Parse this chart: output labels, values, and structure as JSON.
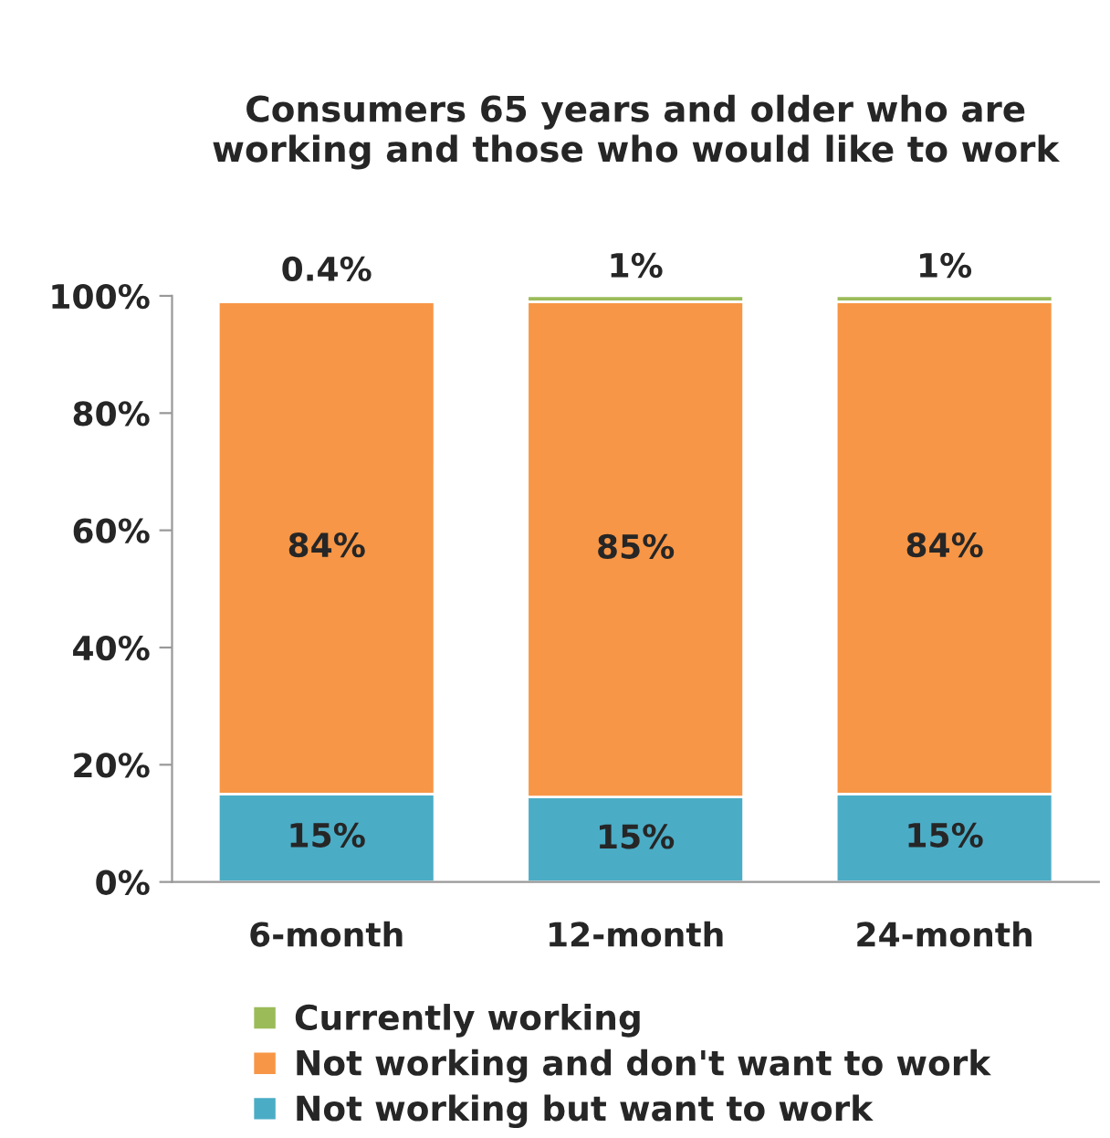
{
  "chart_data": {
    "type": "bar",
    "stacked": true,
    "title": "Consumers 65 years and older who are working and those who would like to work",
    "categories": [
      "6-month",
      "12-month",
      "24-month"
    ],
    "series": [
      {
        "name": "Not working but want to work",
        "color": "#4bacc6",
        "values": [
          15,
          14.5,
          15
        ],
        "value_labels": [
          "15%",
          "15%",
          "15%"
        ]
      },
      {
        "name": "Not working and don't want to work",
        "color": "#f79646",
        "values": [
          84,
          84.5,
          84
        ],
        "value_labels": [
          "84%",
          "85%",
          "84%"
        ]
      },
      {
        "name": "Currently working",
        "color": "#9bbb59",
        "values": [
          0.4,
          1,
          1
        ],
        "value_labels": [
          "0.4%",
          "1%",
          "1%"
        ]
      }
    ],
    "ylim": [
      0,
      100
    ],
    "yticks": [
      {
        "value": 0,
        "label": "0%"
      },
      {
        "value": 20,
        "label": "20%"
      },
      {
        "value": 40,
        "label": "40%"
      },
      {
        "value": 60,
        "label": "60%"
      },
      {
        "value": 80,
        "label": "80%"
      },
      {
        "value": 100,
        "label": "100%"
      }
    ],
    "grid": false,
    "legend": "bottom"
  }
}
